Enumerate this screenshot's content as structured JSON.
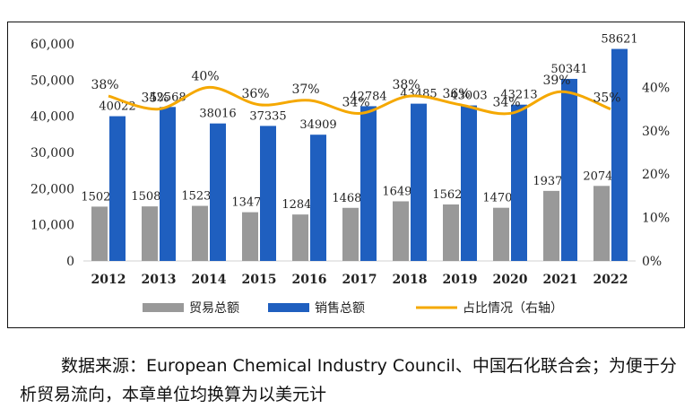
{
  "chart_data": {
    "type": "bar",
    "categories": [
      "2012",
      "2013",
      "2014",
      "2015",
      "2016",
      "2017",
      "2018",
      "2019",
      "2020",
      "2021",
      "2022"
    ],
    "series": [
      {
        "name": "贸易总额",
        "kind": "bar",
        "color": "#999999",
        "values": [
          15023,
          15084,
          15235,
          13477,
          12846,
          14683,
          16491,
          15625,
          14705,
          19372,
          20749
        ]
      },
      {
        "name": "销售总额",
        "kind": "bar",
        "color": "#1f5fbf",
        "values": [
          40022,
          42568,
          38016,
          37335,
          34909,
          42784,
          43485,
          43003,
          43213,
          50341,
          58621
        ]
      },
      {
        "name": "占比情况（右轴）",
        "kind": "line",
        "axis": "right",
        "color": "#f5a800",
        "values": [
          38,
          35,
          40,
          36,
          37,
          34,
          38,
          36,
          34,
          39,
          35
        ],
        "value_labels": [
          "38%",
          "35%",
          "40%",
          "36%",
          "37%",
          "34%",
          "38%",
          "36%",
          "34%",
          "39%",
          "35%"
        ]
      }
    ],
    "y_left": {
      "lim": [
        0,
        60000
      ],
      "ticks": [
        "0",
        "10,000",
        "20,000",
        "30,000",
        "40,000",
        "50,000",
        "60,000"
      ]
    },
    "y_right": {
      "lim": [
        0,
        50
      ],
      "ticks": [
        "0%",
        "10%",
        "20%",
        "30%",
        "40%"
      ]
    },
    "legend_position": "bottom",
    "grid": false
  },
  "note": "数据来源：European Chemical Industry Council、中国石化联合会；为便于分析贸易流向，本章单位均换算为以美元计"
}
